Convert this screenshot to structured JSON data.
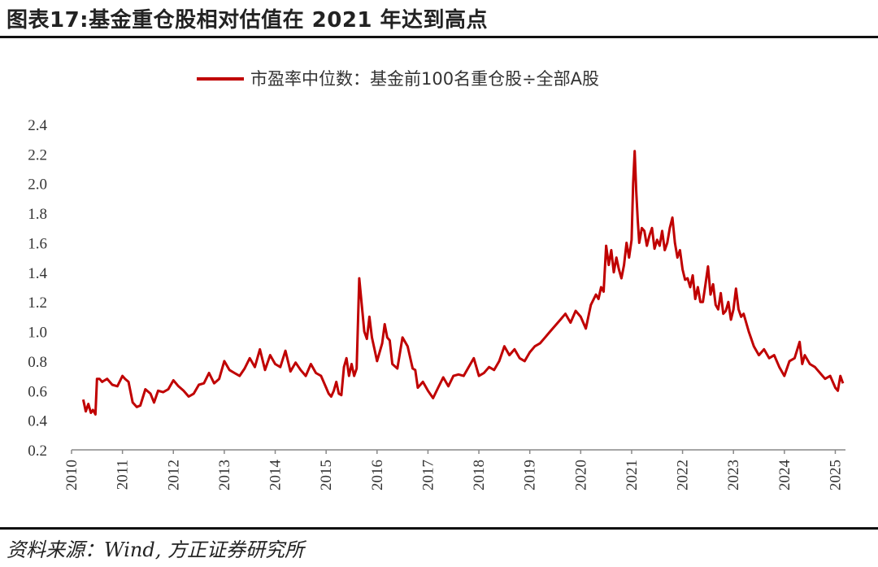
{
  "header": {
    "title": "图表17:基金重仓股相对估值在 2021 年达到高点"
  },
  "footer": {
    "source": "资料来源：Wind, 方正证券研究所"
  },
  "colors": {
    "series": "#c00000",
    "axis": "#888888",
    "text": "#333333"
  },
  "chart_data": {
    "type": "line",
    "title": "",
    "xlabel": "",
    "ylabel": "",
    "legend": {
      "position": "top-center",
      "entries": [
        "市盈率中位数：基金前100名重仓股÷全部A股"
      ]
    },
    "ylim": [
      0.2,
      2.4
    ],
    "yticks": [
      "0.2",
      "0.4",
      "0.6",
      "0.8",
      "1.0",
      "1.2",
      "1.4",
      "1.6",
      "1.8",
      "2.0",
      "2.2",
      "2.4"
    ],
    "xlim": [
      2010.0,
      2025.2
    ],
    "xticks": [
      "2010",
      "2011",
      "2012",
      "2013",
      "2014",
      "2015",
      "2016",
      "2017",
      "2018",
      "2019",
      "2020",
      "2021",
      "2022",
      "2023",
      "2024",
      "2025"
    ],
    "grid": false,
    "series": [
      {
        "name": "市盈率中位数：基金前100名重仓股÷全部A股",
        "x": [
          2010.23,
          2010.28,
          2010.33,
          2010.38,
          2010.42,
          2010.47,
          2010.5,
          2010.55,
          2010.6,
          2010.7,
          2010.8,
          2010.9,
          2011.0,
          2011.05,
          2011.12,
          2011.2,
          2011.28,
          2011.35,
          2011.45,
          2011.55,
          2011.62,
          2011.7,
          2011.8,
          2011.9,
          2012.0,
          2012.1,
          2012.2,
          2012.3,
          2012.4,
          2012.5,
          2012.6,
          2012.7,
          2012.8,
          2012.9,
          2013.0,
          2013.1,
          2013.2,
          2013.3,
          2013.4,
          2013.5,
          2013.6,
          2013.7,
          2013.8,
          2013.9,
          2014.0,
          2014.1,
          2014.2,
          2014.3,
          2014.4,
          2014.5,
          2014.6,
          2014.7,
          2014.8,
          2014.9,
          2015.0,
          2015.05,
          2015.1,
          2015.15,
          2015.2,
          2015.25,
          2015.3,
          2015.35,
          2015.4,
          2015.45,
          2015.5,
          2015.55,
          2015.6,
          2015.65,
          2015.7,
          2015.75,
          2015.8,
          2015.85,
          2015.9,
          2015.95,
          2016.0,
          2016.1,
          2016.15,
          2016.2,
          2016.25,
          2016.3,
          2016.4,
          2016.5,
          2016.6,
          2016.7,
          2016.75,
          2016.8,
          2016.9,
          2017.0,
          2017.1,
          2017.2,
          2017.3,
          2017.4,
          2017.5,
          2017.6,
          2017.7,
          2017.8,
          2017.9,
          2018.0,
          2018.1,
          2018.2,
          2018.3,
          2018.4,
          2018.5,
          2018.6,
          2018.7,
          2018.8,
          2018.9,
          2019.0,
          2019.1,
          2019.2,
          2019.3,
          2019.4,
          2019.5,
          2019.6,
          2019.7,
          2019.8,
          2019.9,
          2020.0,
          2020.1,
          2020.2,
          2020.3,
          2020.35,
          2020.4,
          2020.45,
          2020.5,
          2020.55,
          2020.6,
          2020.65,
          2020.7,
          2020.75,
          2020.8,
          2020.85,
          2020.9,
          2020.95,
          2021.0,
          2021.03,
          2021.06,
          2021.09,
          2021.12,
          2021.15,
          2021.2,
          2021.25,
          2021.3,
          2021.35,
          2021.4,
          2021.45,
          2021.5,
          2021.55,
          2021.6,
          2021.65,
          2021.7,
          2021.75,
          2021.8,
          2021.85,
          2021.9,
          2021.95,
          2022.0,
          2022.05,
          2022.1,
          2022.15,
          2022.2,
          2022.25,
          2022.3,
          2022.35,
          2022.4,
          2022.45,
          2022.5,
          2022.55,
          2022.6,
          2022.65,
          2022.7,
          2022.75,
          2022.8,
          2022.85,
          2022.9,
          2022.95,
          2023.0,
          2023.05,
          2023.1,
          2023.15,
          2023.2,
          2023.3,
          2023.4,
          2023.5,
          2023.6,
          2023.7,
          2023.8,
          2023.9,
          2024.0,
          2024.1,
          2024.2,
          2024.3,
          2024.35,
          2024.4,
          2024.5,
          2024.6,
          2024.7,
          2024.8,
          2024.9,
          2025.0,
          2025.05,
          2025.1,
          2025.15
        ],
        "values": [
          0.54,
          0.46,
          0.51,
          0.45,
          0.47,
          0.44,
          0.68,
          0.68,
          0.66,
          0.68,
          0.64,
          0.63,
          0.7,
          0.68,
          0.66,
          0.52,
          0.49,
          0.5,
          0.61,
          0.58,
          0.52,
          0.6,
          0.59,
          0.61,
          0.67,
          0.63,
          0.6,
          0.56,
          0.58,
          0.64,
          0.65,
          0.72,
          0.65,
          0.68,
          0.8,
          0.74,
          0.72,
          0.7,
          0.75,
          0.82,
          0.76,
          0.88,
          0.74,
          0.84,
          0.78,
          0.76,
          0.87,
          0.73,
          0.79,
          0.74,
          0.7,
          0.78,
          0.72,
          0.7,
          0.62,
          0.58,
          0.56,
          0.6,
          0.66,
          0.58,
          0.57,
          0.76,
          0.82,
          0.7,
          0.78,
          0.7,
          0.75,
          1.36,
          1.18,
          1.0,
          0.95,
          1.1,
          0.96,
          0.88,
          0.8,
          0.92,
          1.05,
          0.96,
          0.94,
          0.78,
          0.75,
          0.96,
          0.9,
          0.75,
          0.74,
          0.62,
          0.66,
          0.6,
          0.55,
          0.62,
          0.69,
          0.63,
          0.7,
          0.71,
          0.7,
          0.76,
          0.82,
          0.7,
          0.72,
          0.76,
          0.74,
          0.8,
          0.9,
          0.84,
          0.88,
          0.82,
          0.8,
          0.86,
          0.9,
          0.92,
          0.96,
          1.0,
          1.04,
          1.08,
          1.12,
          1.06,
          1.14,
          1.1,
          1.02,
          1.18,
          1.25,
          1.22,
          1.3,
          1.27,
          1.58,
          1.45,
          1.55,
          1.4,
          1.5,
          1.42,
          1.36,
          1.45,
          1.6,
          1.5,
          1.62,
          2.0,
          2.22,
          1.95,
          1.75,
          1.6,
          1.7,
          1.68,
          1.58,
          1.65,
          1.7,
          1.56,
          1.62,
          1.58,
          1.68,
          1.55,
          1.6,
          1.7,
          1.77,
          1.6,
          1.5,
          1.55,
          1.42,
          1.35,
          1.36,
          1.3,
          1.38,
          1.22,
          1.3,
          1.2,
          1.2,
          1.32,
          1.44,
          1.25,
          1.32,
          1.18,
          1.15,
          1.26,
          1.12,
          1.14,
          1.2,
          1.08,
          1.15,
          1.29,
          1.15,
          1.1,
          1.12,
          1.0,
          0.9,
          0.84,
          0.88,
          0.82,
          0.84,
          0.76,
          0.7,
          0.8,
          0.82,
          0.93,
          0.78,
          0.84,
          0.78,
          0.76,
          0.72,
          0.68,
          0.7,
          0.62,
          0.6,
          0.7,
          0.65
        ]
      }
    ]
  }
}
